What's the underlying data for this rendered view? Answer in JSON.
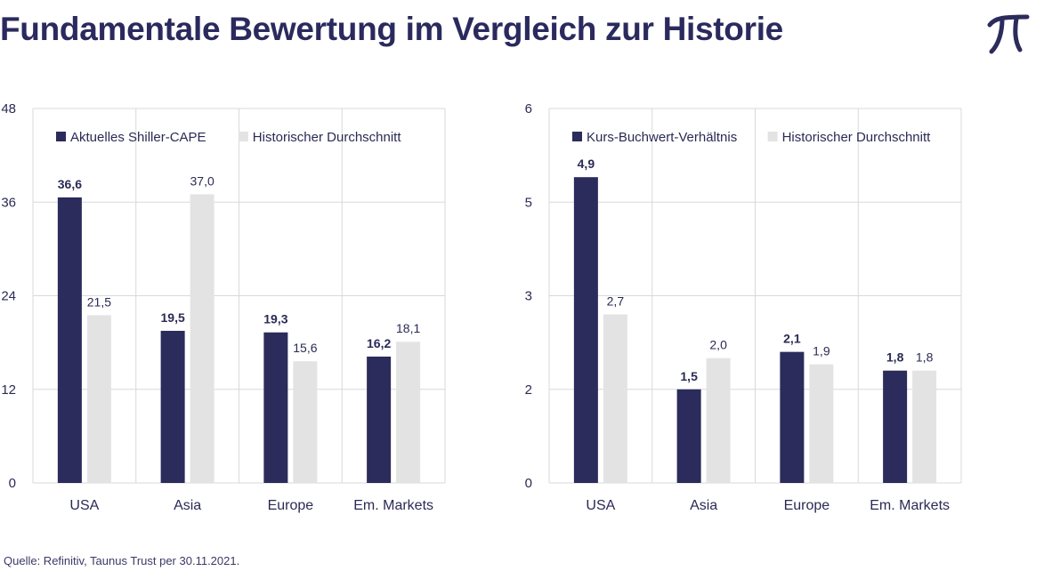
{
  "title": "Fundamentale Bewertung im Vergleich zur Historie",
  "source": "Quelle: Refinitiv, Taunus Trust per 30.11.2021.",
  "colors": {
    "primary": "#2b2b5c",
    "historic": "#e3e3e3",
    "grid": "#d9d9d9",
    "text": "#2a2a55"
  },
  "logo_icon": "pi-logo-icon",
  "chart_data": [
    {
      "type": "bar",
      "categories": [
        "USA",
        "Asia",
        "Europe",
        "Em. Markets"
      ],
      "ylim": [
        0,
        48
      ],
      "yticks": [
        "0",
        "12",
        "24",
        "36",
        "48"
      ],
      "ytick_values": [
        0,
        12,
        24,
        36,
        48
      ],
      "grid": true,
      "legend_position": "top",
      "series": [
        {
          "name": "Aktuelles Shiller-CAPE",
          "values": [
            36.6,
            19.5,
            19.3,
            16.2
          ],
          "labels": [
            "36,6",
            "19,5",
            "19,3",
            "16,2"
          ],
          "label_bold": true
        },
        {
          "name": "Historischer Durchschnitt",
          "values": [
            21.5,
            37.0,
            15.6,
            18.1
          ],
          "labels": [
            "21,5",
            "37,0",
            "15,6",
            "18,1"
          ],
          "label_bold": false
        }
      ]
    },
    {
      "type": "bar",
      "categories": [
        "USA",
        "Asia",
        "Europe",
        "Em. Markets"
      ],
      "ylim": [
        0,
        6
      ],
      "yticks": [
        "0",
        "2",
        "3",
        "5",
        "6"
      ],
      "ytick_values": [
        0,
        1.5,
        3,
        4.5,
        6
      ],
      "grid": true,
      "legend_position": "top",
      "series": [
        {
          "name": "Kurs-Buchwert-Verhältnis",
          "values": [
            4.9,
            1.5,
            2.1,
            1.8
          ],
          "labels": [
            "4,9",
            "1,5",
            "2,1",
            "1,8"
          ],
          "label_bold": true
        },
        {
          "name": "Historischer Durchschnitt",
          "values": [
            2.7,
            2.0,
            1.9,
            1.8
          ],
          "labels": [
            "2,7",
            "2,0",
            "1,9",
            "1,8"
          ],
          "label_bold": false
        }
      ]
    }
  ]
}
